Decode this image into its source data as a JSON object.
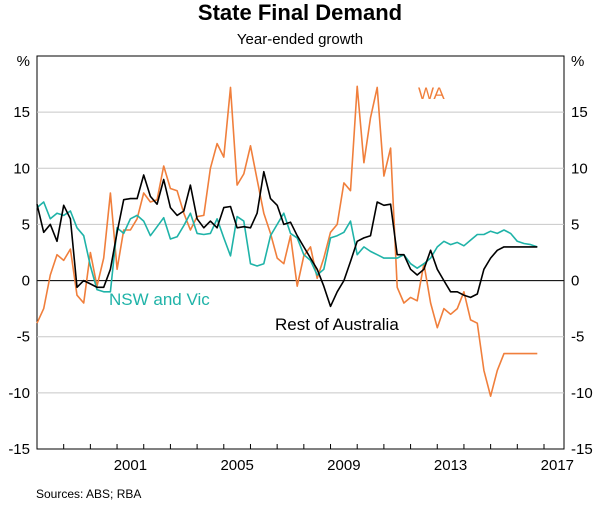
{
  "chart_data": {
    "type": "line",
    "title": "State Final Demand",
    "subtitle": "Year-ended growth",
    "ylabel_left": "%",
    "ylabel_right": "%",
    "ylim": [
      -15,
      20
    ],
    "y_ticks": [
      15,
      10,
      5,
      0,
      -5,
      -10,
      -15
    ],
    "x_range": [
      1998.0,
      2017.75
    ],
    "x_ticks": [
      2001,
      2005,
      2009,
      2013,
      2017
    ],
    "source": "Sources: ABS; RBA",
    "series": [
      {
        "name": "WA",
        "color": "#f07f3c",
        "x": [
          1998.0,
          1998.25,
          1998.5,
          1998.75,
          1999.0,
          1999.25,
          1999.5,
          1999.75,
          2000.0,
          2000.25,
          2000.5,
          2000.75,
          2001.0,
          2001.25,
          2001.5,
          2001.75,
          2002.0,
          2002.25,
          2002.5,
          2002.75,
          2003.0,
          2003.25,
          2003.5,
          2003.75,
          2004.0,
          2004.25,
          2004.5,
          2004.75,
          2005.0,
          2005.25,
          2005.5,
          2005.75,
          2006.0,
          2006.25,
          2006.5,
          2006.75,
          2007.0,
          2007.25,
          2007.5,
          2007.75,
          2008.0,
          2008.25,
          2008.5,
          2008.75,
          2009.0,
          2009.25,
          2009.5,
          2009.75,
          2010.0,
          2010.25,
          2010.5,
          2010.75,
          2011.0,
          2011.25,
          2011.5,
          2011.75,
          2012.0,
          2012.25,
          2012.5,
          2012.75,
          2013.0,
          2013.25,
          2013.5,
          2013.75,
          2014.0,
          2014.25,
          2014.5,
          2014.75,
          2015.0,
          2015.25,
          2015.5,
          2015.75,
          2016.0,
          2016.25,
          2016.5,
          2016.75
        ],
        "values": [
          -3.8,
          -2.5,
          0.5,
          2.3,
          1.8,
          2.8,
          -1.3,
          -2.0,
          2.5,
          -0.5,
          2.0,
          7.8,
          1.0,
          4.5,
          4.5,
          5.5,
          7.8,
          7.0,
          7.2,
          10.2,
          8.2,
          8.0,
          6.0,
          4.5,
          5.7,
          5.8,
          10.0,
          12.2,
          11.0,
          17.2,
          8.5,
          9.5,
          12.0,
          9.0,
          6.0,
          4.2,
          2.0,
          1.5,
          4.0,
          -0.5,
          2.2,
          3.0,
          0.2,
          2.0,
          4.3,
          5.0,
          8.7,
          8.0,
          17.3,
          10.5,
          14.5,
          17.2,
          9.3,
          11.8,
          -0.6,
          -2.0,
          -1.5,
          -1.8,
          1.5,
          -2.0,
          -4.2,
          -2.5,
          -3.0,
          -2.5,
          -1.0,
          -3.5,
          -3.8,
          -8.0,
          -10.3,
          -8.0,
          -6.5,
          -6.5,
          -6.5,
          -6.5,
          -6.5,
          -6.5
        ]
      },
      {
        "name": "NSW and Vic",
        "color": "#1fb3a8",
        "x": [
          1998.0,
          1998.25,
          1998.5,
          1998.75,
          1999.0,
          1999.25,
          1999.5,
          1999.75,
          2000.0,
          2000.25,
          2000.5,
          2000.75,
          2001.0,
          2001.25,
          2001.5,
          2001.75,
          2002.0,
          2002.25,
          2002.5,
          2002.75,
          2003.0,
          2003.25,
          2003.5,
          2003.75,
          2004.0,
          2004.25,
          2004.5,
          2004.75,
          2005.0,
          2005.25,
          2005.5,
          2005.75,
          2006.0,
          2006.25,
          2006.5,
          2006.75,
          2007.0,
          2007.25,
          2007.5,
          2007.75,
          2008.0,
          2008.25,
          2008.5,
          2008.75,
          2009.0,
          2009.25,
          2009.5,
          2009.75,
          2010.0,
          2010.25,
          2010.5,
          2010.75,
          2011.0,
          2011.25,
          2011.5,
          2011.75,
          2012.0,
          2012.25,
          2012.5,
          2012.75,
          2013.0,
          2013.25,
          2013.5,
          2013.75,
          2014.0,
          2014.25,
          2014.5,
          2014.75,
          2015.0,
          2015.25,
          2015.5,
          2015.75,
          2016.0,
          2016.25,
          2016.5,
          2016.75
        ],
        "values": [
          6.5,
          7.0,
          5.5,
          6.0,
          5.8,
          6.2,
          4.7,
          4.0,
          1.3,
          -0.8,
          -1.0,
          -1.0,
          4.7,
          4.2,
          5.5,
          5.8,
          5.3,
          4.0,
          4.8,
          5.6,
          3.7,
          3.9,
          4.9,
          6.0,
          4.2,
          4.1,
          4.2,
          5.5,
          3.8,
          2.2,
          5.7,
          5.3,
          1.5,
          1.3,
          1.5,
          4.0,
          5.0,
          6.0,
          4.2,
          3.8,
          2.3,
          1.8,
          0.5,
          1.0,
          3.8,
          4.0,
          4.3,
          5.3,
          2.3,
          3.0,
          2.6,
          2.3,
          2.0,
          2.0,
          2.0,
          2.3,
          1.5,
          1.1,
          1.5,
          2.0,
          3.0,
          3.5,
          3.2,
          3.4,
          3.1,
          3.6,
          4.1,
          4.1,
          4.4,
          4.2,
          4.5,
          4.2,
          3.5,
          3.3,
          3.2,
          3.0
        ]
      },
      {
        "name": "Rest of Australia",
        "color": "#000000",
        "x": [
          1998.0,
          1998.25,
          1998.5,
          1998.75,
          1999.0,
          1999.25,
          1999.5,
          1999.75,
          2000.0,
          2000.25,
          2000.5,
          2000.75,
          2001.0,
          2001.25,
          2001.5,
          2001.75,
          2002.0,
          2002.25,
          2002.5,
          2002.75,
          2003.0,
          2003.25,
          2003.5,
          2003.75,
          2004.0,
          2004.25,
          2004.5,
          2004.75,
          2005.0,
          2005.25,
          2005.5,
          2005.75,
          2006.0,
          2006.25,
          2006.5,
          2006.75,
          2007.0,
          2007.25,
          2007.5,
          2007.75,
          2008.0,
          2008.25,
          2008.5,
          2008.75,
          2009.0,
          2009.25,
          2009.5,
          2009.75,
          2010.0,
          2010.25,
          2010.5,
          2010.75,
          2011.0,
          2011.25,
          2011.5,
          2011.75,
          2012.0,
          2012.25,
          2012.5,
          2012.75,
          2013.0,
          2013.25,
          2013.5,
          2013.75,
          2014.0,
          2014.25,
          2014.5,
          2014.75,
          2015.0,
          2015.25,
          2015.5,
          2015.75,
          2016.0,
          2016.25,
          2016.5,
          2016.75
        ],
        "values": [
          6.8,
          4.3,
          5.0,
          3.5,
          6.7,
          5.5,
          -0.6,
          0.0,
          -0.3,
          -0.6,
          -0.6,
          1.0,
          4.3,
          7.2,
          7.3,
          7.3,
          9.4,
          7.5,
          6.8,
          9.0,
          6.5,
          5.8,
          6.2,
          8.5,
          5.5,
          4.7,
          5.3,
          4.7,
          6.5,
          6.6,
          4.7,
          4.8,
          4.7,
          6.0,
          9.7,
          7.3,
          6.7,
          5.0,
          5.2,
          4.0,
          3.0,
          2.0,
          1.0,
          -0.5,
          -2.3,
          -1.0,
          0.0,
          1.7,
          3.5,
          3.8,
          4.0,
          7.0,
          6.7,
          6.8,
          2.3,
          2.3,
          1.0,
          0.5,
          1.0,
          2.7,
          1.0,
          0.0,
          -1.0,
          -1.0,
          -1.3,
          -1.5,
          -1.2,
          1.0,
          2.0,
          2.7,
          3.0,
          3.0,
          3.0,
          3.0,
          3.0,
          3.0
        ]
      }
    ],
    "series_labels": [
      {
        "text": "WA",
        "series": "WA"
      },
      {
        "text": "NSW and Vic",
        "series": "NSW and Vic"
      },
      {
        "text": "Rest of Australia",
        "series": "Rest of Australia"
      }
    ]
  }
}
